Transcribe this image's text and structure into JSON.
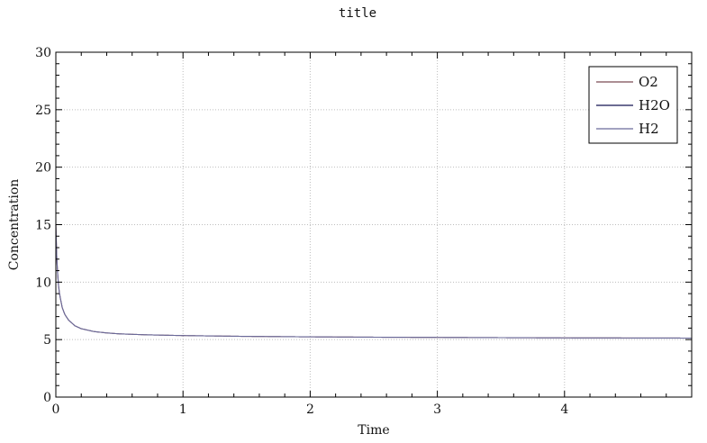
{
  "chart_data": {
    "type": "line",
    "title": "title",
    "xlabel": "Time",
    "ylabel": "Concentration",
    "xlim": [
      0,
      5
    ],
    "ylim": [
      0,
      30
    ],
    "x_ticks": [
      0,
      1,
      2,
      3,
      4
    ],
    "y_ticks": [
      0,
      5,
      10,
      15,
      20,
      25,
      30
    ],
    "x_tick_labels": [
      "0",
      "1",
      "2",
      "3",
      "4"
    ],
    "y_tick_labels": [
      "0",
      "5",
      "10",
      "15",
      "20",
      "25",
      "30"
    ],
    "grid": true,
    "legend_position": "top-right",
    "x": [
      0,
      0.005,
      0.01,
      0.02,
      0.03,
      0.05,
      0.07,
      0.1,
      0.15,
      0.2,
      0.3,
      0.4,
      0.5,
      0.7,
      1.0,
      1.5,
      2.0,
      2.5,
      3.0,
      3.5,
      4.0,
      4.5,
      5.0
    ],
    "series": [
      {
        "name": "O2",
        "color": "#7a4a55",
        "values": [
          15.0,
          12.8,
          11.4,
          9.8,
          8.9,
          7.8,
          7.2,
          6.7,
          6.2,
          5.95,
          5.7,
          5.58,
          5.5,
          5.42,
          5.35,
          5.28,
          5.24,
          5.21,
          5.19,
          5.17,
          5.15,
          5.14,
          5.13
        ]
      },
      {
        "name": "H2O",
        "color": "#141450",
        "values": [
          null,
          null,
          null,
          null,
          null,
          null,
          null,
          null,
          null,
          null,
          null,
          null,
          null,
          null,
          null,
          null,
          null,
          null,
          null,
          null,
          null,
          null,
          null
        ]
      },
      {
        "name": "H2",
        "color": "#6a6a9a",
        "values": [
          15.0,
          12.8,
          11.4,
          9.8,
          8.9,
          7.8,
          7.2,
          6.7,
          6.2,
          5.95,
          5.7,
          5.58,
          5.5,
          5.42,
          5.35,
          5.28,
          5.24,
          5.21,
          5.19,
          5.17,
          5.15,
          5.14,
          5.13
        ]
      }
    ]
  }
}
